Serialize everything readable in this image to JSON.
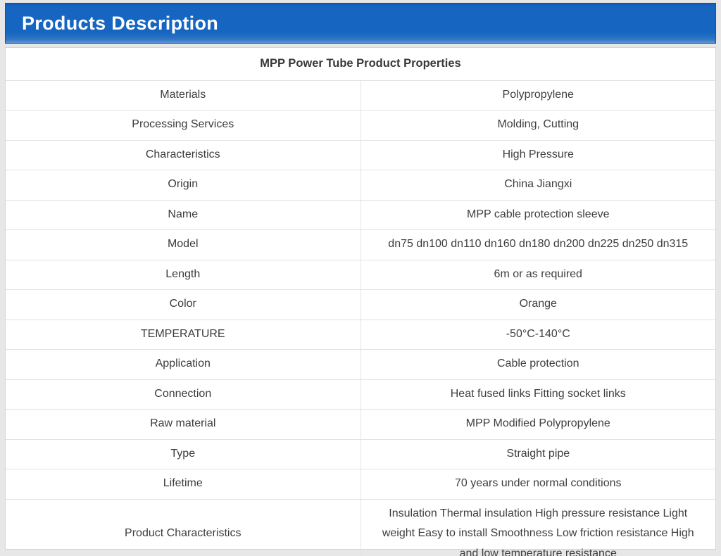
{
  "header": {
    "title": "Products Description",
    "accent_color": "#1565c1",
    "text_color": "#ffffff"
  },
  "table": {
    "title": "MPP Power Tube Product Properties",
    "columns": [
      "property",
      "value"
    ],
    "rows": [
      {
        "label": "Materials",
        "value": "Polypropylene"
      },
      {
        "label": "Processing Services",
        "value": "Molding, Cutting"
      },
      {
        "label": "Characteristics",
        "value": "High Pressure"
      },
      {
        "label": "Origin",
        "value": "China Jiangxi"
      },
      {
        "label": "Name",
        "value": "MPP cable protection sleeve"
      },
      {
        "label": "Model",
        "value": "dn75 dn100 dn110 dn160 dn180 dn200 dn225 dn250 dn315"
      },
      {
        "label": "Length",
        "value": "6m or as required"
      },
      {
        "label": "Color",
        "value": "Orange"
      },
      {
        "label": "TEMPERATURE",
        "value": "-50°C-140°C"
      },
      {
        "label": "Application",
        "value": "Cable protection"
      },
      {
        "label": "Connection",
        "value": "Heat fused links Fitting socket links"
      },
      {
        "label": "Raw material",
        "value": "MPP Modified Polypropylene"
      },
      {
        "label": "Type",
        "value": "Straight pipe"
      },
      {
        "label": "Lifetime",
        "value": "70 years under normal conditions"
      },
      {
        "label": "Product Characteristics",
        "value": "Insulation Thermal insulation High pressure resistance Light weight Easy to install Smoothness Low friction resistance High and low temperature resistance"
      }
    ]
  }
}
